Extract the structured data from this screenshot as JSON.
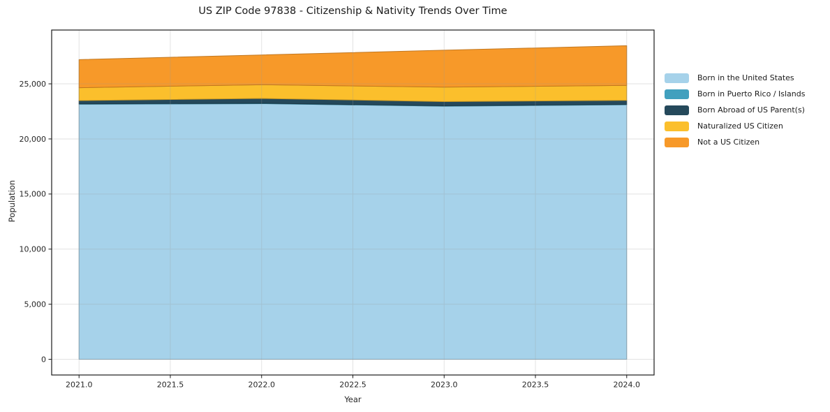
{
  "title": "US ZIP Code 97838 - Citizenship & Nativity Trends Over Time",
  "chart_data": {
    "type": "area",
    "stacked": true,
    "title": "US ZIP Code 97838 - Citizenship & Nativity Trends Over Time",
    "xlabel": "Year",
    "ylabel": "Population",
    "x": [
      2021,
      2022,
      2023,
      2024
    ],
    "xlim": [
      2020.85,
      2024.15
    ],
    "ylim": [
      -1423,
      29883
    ],
    "xticks": [
      2021.0,
      2021.5,
      2022.0,
      2022.5,
      2023.0,
      2023.5,
      2024.0
    ],
    "xtick_labels": [
      "2021.0",
      "2021.5",
      "2022.0",
      "2022.5",
      "2023.0",
      "2023.5",
      "2024.0"
    ],
    "yticks": [
      0,
      5000,
      10000,
      15000,
      20000,
      25000
    ],
    "ytick_labels": [
      "0",
      "5,000",
      "10,000",
      "15,000",
      "20,000",
      "25,000"
    ],
    "grid": true,
    "legend_position": "right",
    "series": [
      {
        "name": "Born in the United States",
        "color": "#A6D2EA",
        "values": [
          23150,
          23200,
          22970,
          23100
        ]
      },
      {
        "name": "Born in Puerto Rico / Islands",
        "color": "#41A0BE",
        "values": [
          40,
          40,
          40,
          40
        ]
      },
      {
        "name": "Born Abroad of US Parent(s)",
        "color": "#25495B",
        "values": [
          290,
          430,
          380,
          360
        ]
      },
      {
        "name": "Naturalized US Citizen",
        "color": "#FBBF2C",
        "values": [
          1170,
          1250,
          1310,
          1360
        ]
      },
      {
        "name": "Not a US Citizen",
        "color": "#F79929",
        "values": [
          2550,
          2700,
          3350,
          3600
        ]
      }
    ],
    "totals": [
      27200,
      27620,
      28050,
      28460
    ]
  }
}
